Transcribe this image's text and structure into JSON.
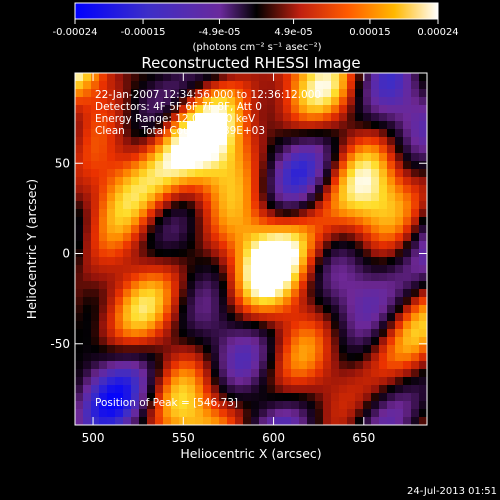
{
  "chart_data": {
    "type": "heatmap",
    "title": "Reconstructed RHESSI Image",
    "xlabel": "Heliocentric X (arcsec)",
    "ylabel": "Heliocentric Y (arcsec)",
    "xlim": [
      490,
      685
    ],
    "ylim": [
      -95,
      100
    ],
    "x_ticks": [
      500,
      550,
      600,
      650
    ],
    "y_ticks": [
      -50,
      0,
      50
    ],
    "colorbar": {
      "min": -0.00024,
      "max": 0.00024,
      "tick_values": [
        -0.00024,
        -0.00015,
        -4.9e-05,
        4.9e-05,
        0.00015,
        0.00024
      ],
      "tick_labels": [
        "-0.00024",
        "-0.00015",
        "-4.9e-05",
        "4.9e-05",
        "0.00015",
        "0.00024"
      ],
      "unit": "(photons cm⁻² s⁻¹ asec⁻²)"
    },
    "annotations": {
      "time": "22-Jan-2007 12:34:56.000 to 12:36:12.000",
      "detectors": "Detectors: 4F 5F 6F 7F 8F, Att 0",
      "energy": "Energy Range: 12.0 - 25.0 keV",
      "method": "Clean     Total Counts: 1.89E+03",
      "peak": "Position of Peak = [546,73]"
    },
    "timestamp": "24-Jul-2013 01:51",
    "peak_position": [
      546,
      73
    ],
    "grid": false,
    "colors": {
      "colormap": [
        "#0000ff",
        "#4b2dd6",
        "#7a2a9c",
        "#000000",
        "#b01a12",
        "#ff3a00",
        "#ff9a00",
        "#ffef4a",
        "#ffffff"
      ]
    }
  }
}
